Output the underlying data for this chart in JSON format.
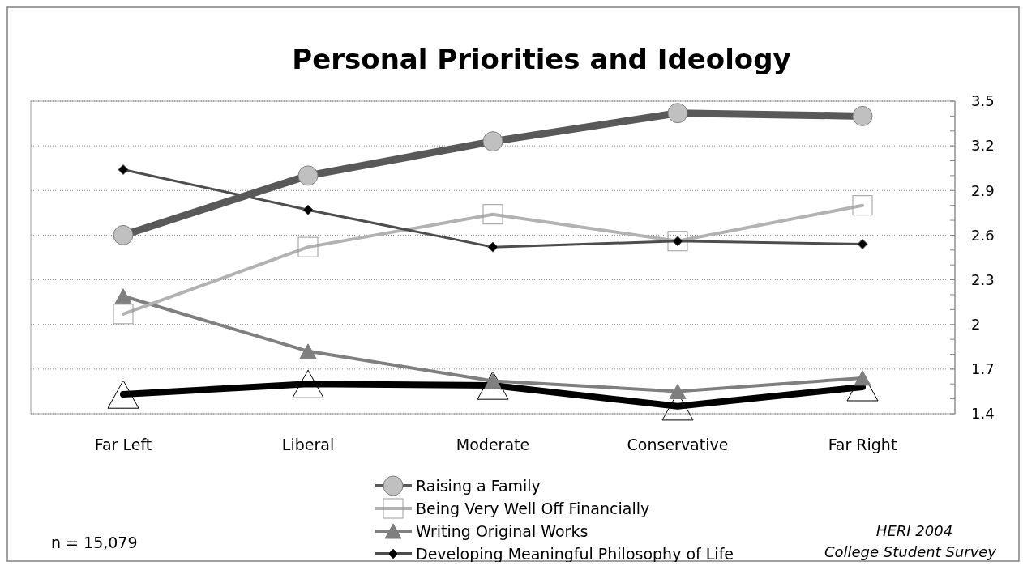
{
  "chart_data": {
    "type": "line",
    "title": "Personal Priorities and Ideology",
    "categories": [
      "Far Left",
      "Liberal",
      "Moderate",
      "Conservative",
      "Far Right"
    ],
    "series": [
      {
        "name": "Raising a Family",
        "color": "#595959",
        "marker": "circle",
        "values": [
          2.6,
          3.0,
          3.23,
          3.42,
          3.4
        ]
      },
      {
        "name": "Being Very Well Off Financially",
        "color": "#b2b2b2",
        "marker": "square",
        "values": [
          2.07,
          2.52,
          2.74,
          2.56,
          2.8
        ]
      },
      {
        "name": "Writing Original Works",
        "color": "#7f7f7f",
        "marker": "triangle",
        "values": [
          2.19,
          1.82,
          1.62,
          1.55,
          1.64
        ]
      },
      {
        "name": "Developing Meaningful Philosophy of Life",
        "color": "#4d4d4d",
        "marker": "diamond",
        "values": [
          3.04,
          2.77,
          2.52,
          2.56,
          2.54
        ]
      },
      {
        "color": "#000000",
        "marker": "triangle",
        "values": [
          1.53,
          1.6,
          1.59,
          1.45,
          1.58
        ]
      }
    ],
    "ylim": [
      1.4,
      3.5
    ],
    "yticks": [
      1.4,
      {
        "value": 1.5,
        "label": null
      },
      {
        "value": 1.6,
        "label": null
      },
      1.7,
      {
        "value": 1.8,
        "label": null
      },
      {
        "value": 1.9,
        "label": null
      },
      2,
      {
        "value": 2.1,
        "label": null
      },
      {
        "value": 2.2,
        "label": null
      },
      2.3,
      {
        "value": 2.4,
        "label": null
      },
      {
        "value": 2.5,
        "label": null
      },
      2.6,
      {
        "value": 2.7,
        "label": null
      },
      {
        "value": 2.8,
        "label": null
      },
      2.9,
      {
        "value": 3.0,
        "label": null
      },
      {
        "value": 3.1,
        "label": null
      },
      3.2,
      {
        "value": 3.3,
        "label": null
      },
      {
        "value": 3.4,
        "label": null
      },
      3.5
    ],
    "grid": "y",
    "legend": "bottom",
    "annotations": [
      "n = 15,079",
      "HERI 2004\nCollege Student Survey"
    ]
  }
}
